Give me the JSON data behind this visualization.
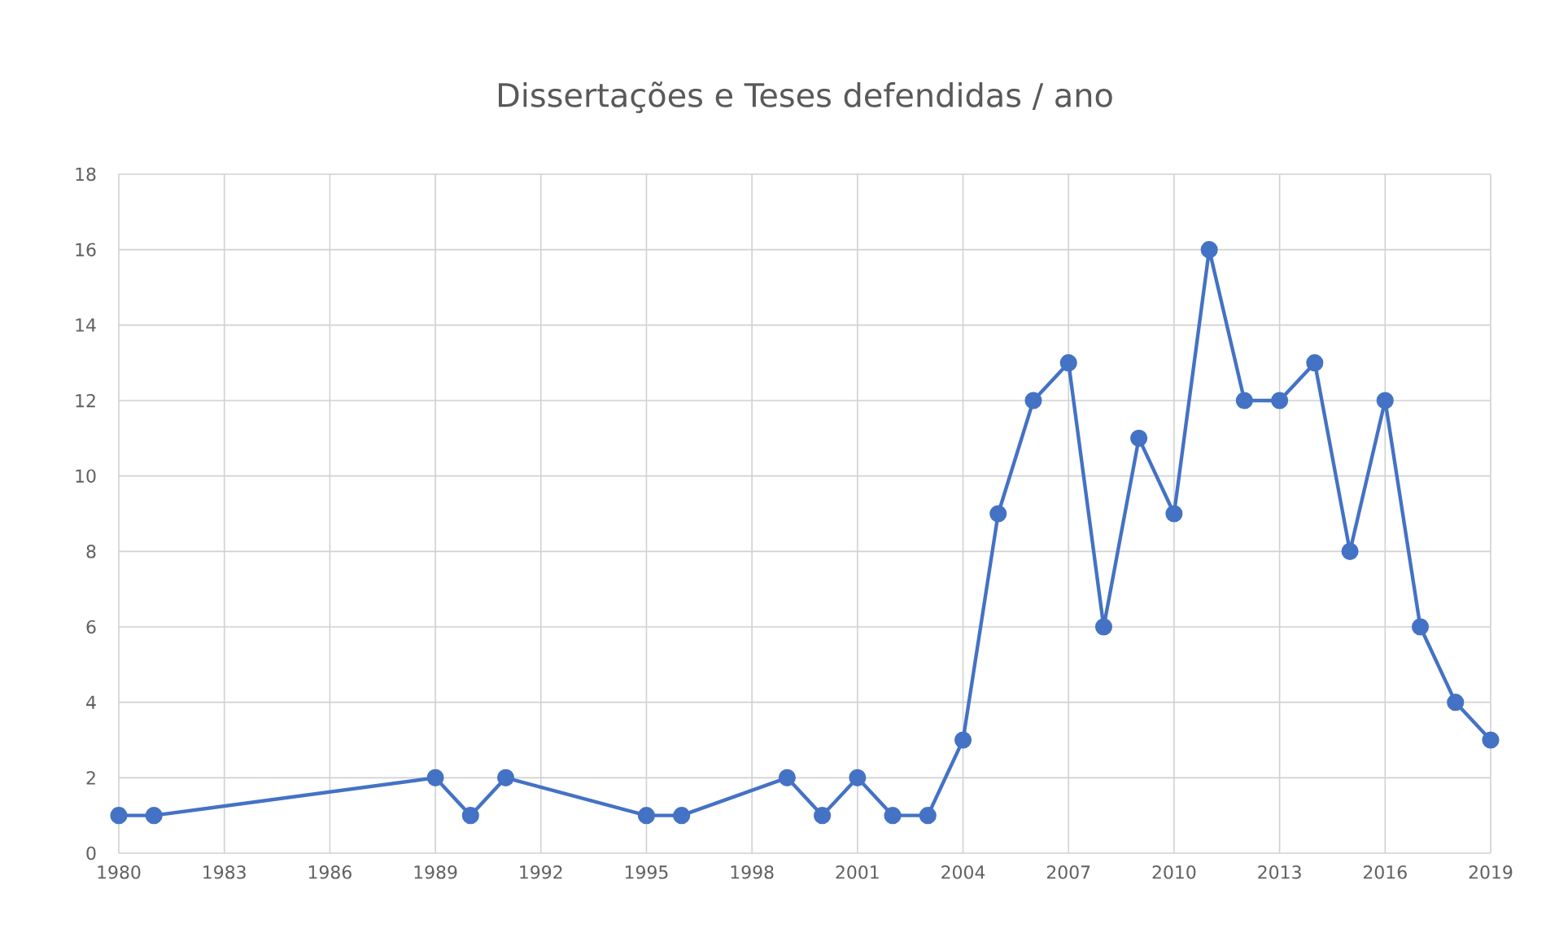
{
  "chart_data": {
    "type": "line",
    "title": "Dissertações e Teses defendidas / ano",
    "x": [
      1980,
      1981,
      1989,
      1990,
      1991,
      1995,
      1996,
      1999,
      2000,
      2001,
      2002,
      2003,
      2004,
      2005,
      2006,
      2007,
      2008,
      2009,
      2010,
      2011,
      2012,
      2013,
      2014,
      2015,
      2016,
      2017,
      2018,
      2019
    ],
    "series": [
      {
        "color": "#4472c4",
        "values": [
          1,
          1,
          2,
          1,
          2,
          1,
          1,
          2,
          1,
          2,
          1,
          1,
          3,
          9,
          12,
          13,
          6,
          11,
          9,
          16,
          12,
          12,
          13,
          8,
          12,
          6,
          4,
          3
        ]
      }
    ],
    "xlim": [
      1980,
      2019
    ],
    "xticks": [
      1980,
      1983,
      1986,
      1989,
      1992,
      1995,
      1998,
      2001,
      2004,
      2007,
      2010,
      2013,
      2016,
      2019
    ],
    "ylim": [
      0,
      18
    ],
    "yticks": [
      0,
      2,
      4,
      6,
      8,
      10,
      12,
      14,
      16,
      18
    ],
    "grid": true,
    "marker": "circle",
    "line_style": "solid"
  }
}
